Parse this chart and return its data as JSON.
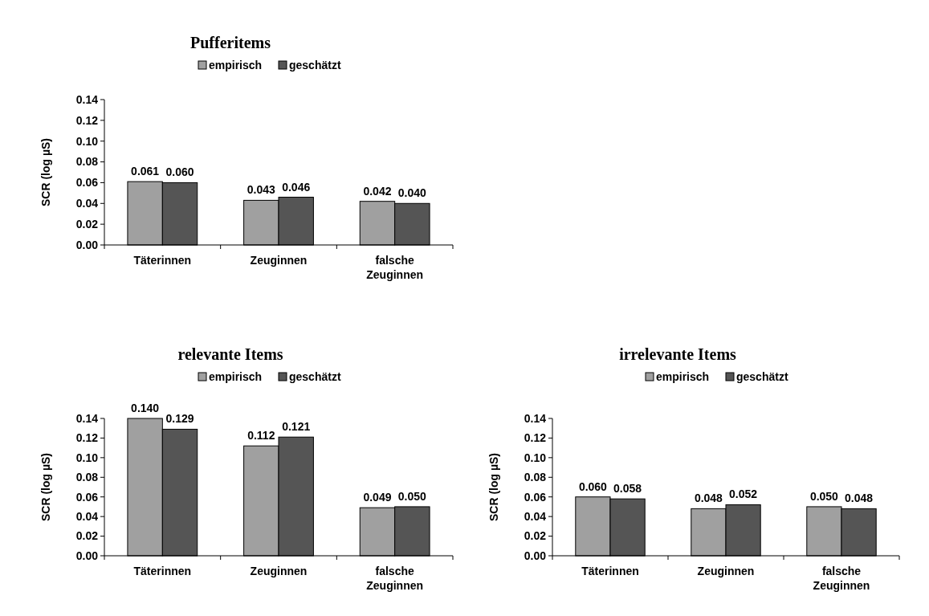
{
  "chart_data": [
    {
      "type": "bar",
      "title": "Pufferitems",
      "ylabel": "SCR (log µS)",
      "categories": [
        "Täterinnen",
        "Zeuginnen",
        "falsche Zeuginnen"
      ],
      "series": [
        {
          "name": "empirisch",
          "color": "#a0a0a0",
          "values": [
            0.061,
            0.043,
            0.042
          ],
          "value_labels": [
            "0.061",
            "0.043",
            "0.042"
          ]
        },
        {
          "name": "geschätzt",
          "color": "#555555",
          "values": [
            0.06,
            0.046,
            0.04
          ],
          "value_labels": [
            "0.060",
            "0.046",
            "0.040"
          ]
        }
      ],
      "ylim": [
        0,
        0.14
      ],
      "yticks": [
        {
          "value": 0,
          "label": "0.00"
        },
        {
          "value": 0.02,
          "label": "0.02"
        },
        {
          "value": 0.04,
          "label": "0.04"
        },
        {
          "value": 0.06,
          "label": "0.06"
        },
        {
          "value": 0.08,
          "label": "0.08"
        },
        {
          "value": 0.1,
          "label": "0.10"
        },
        {
          "value": 0.12,
          "label": "0.12"
        },
        {
          "value": 0.14,
          "label": "0.14"
        }
      ],
      "legend": "top",
      "grid": false
    },
    {
      "type": "bar",
      "title": "relevante Items",
      "ylabel": "SCR (log µS)",
      "categories": [
        "Täterinnen",
        "Zeuginnen",
        "falsche Zeuginnen"
      ],
      "series": [
        {
          "name": "empirisch",
          "color": "#a0a0a0",
          "values": [
            0.14,
            0.112,
            0.049
          ],
          "value_labels": [
            "0.140",
            "0.112",
            "0.049"
          ]
        },
        {
          "name": "geschätzt",
          "color": "#555555",
          "values": [
            0.129,
            0.121,
            0.05
          ],
          "value_labels": [
            "0.129",
            "0.121",
            "0.050"
          ]
        }
      ],
      "ylim": [
        0,
        0.14
      ],
      "yticks": [
        {
          "value": 0,
          "label": "0.00"
        },
        {
          "value": 0.02,
          "label": "0.02"
        },
        {
          "value": 0.04,
          "label": "0.04"
        },
        {
          "value": 0.06,
          "label": "0.06"
        },
        {
          "value": 0.08,
          "label": "0.08"
        },
        {
          "value": 0.1,
          "label": "0.10"
        },
        {
          "value": 0.12,
          "label": "0.12"
        },
        {
          "value": 0.14,
          "label": "0.14"
        }
      ],
      "legend": "top",
      "grid": false
    },
    {
      "type": "bar",
      "title": "irrelevante Items",
      "ylabel": "SCR (log µS)",
      "categories": [
        "Täterinnen",
        "Zeuginnen",
        "falsche Zeuginnen"
      ],
      "series": [
        {
          "name": "empirisch",
          "color": "#a0a0a0",
          "values": [
            0.06,
            0.048,
            0.05
          ],
          "value_labels": [
            "0.060",
            "0.048",
            "0.050"
          ]
        },
        {
          "name": "geschätzt",
          "color": "#555555",
          "values": [
            0.058,
            0.052,
            0.048
          ],
          "value_labels": [
            "0.058",
            "0.052",
            "0.048"
          ]
        }
      ],
      "ylim": [
        0,
        0.14
      ],
      "yticks": [
        {
          "value": 0,
          "label": "0.00"
        },
        {
          "value": 0.02,
          "label": "0.02"
        },
        {
          "value": 0.04,
          "label": "0.04"
        },
        {
          "value": 0.06,
          "label": "0.06"
        },
        {
          "value": 0.08,
          "label": "0.08"
        },
        {
          "value": 0.1,
          "label": "0.10"
        },
        {
          "value": 0.12,
          "label": "0.12"
        },
        {
          "value": 0.14,
          "label": "0.14"
        }
      ],
      "legend": "top",
      "grid": false
    }
  ]
}
